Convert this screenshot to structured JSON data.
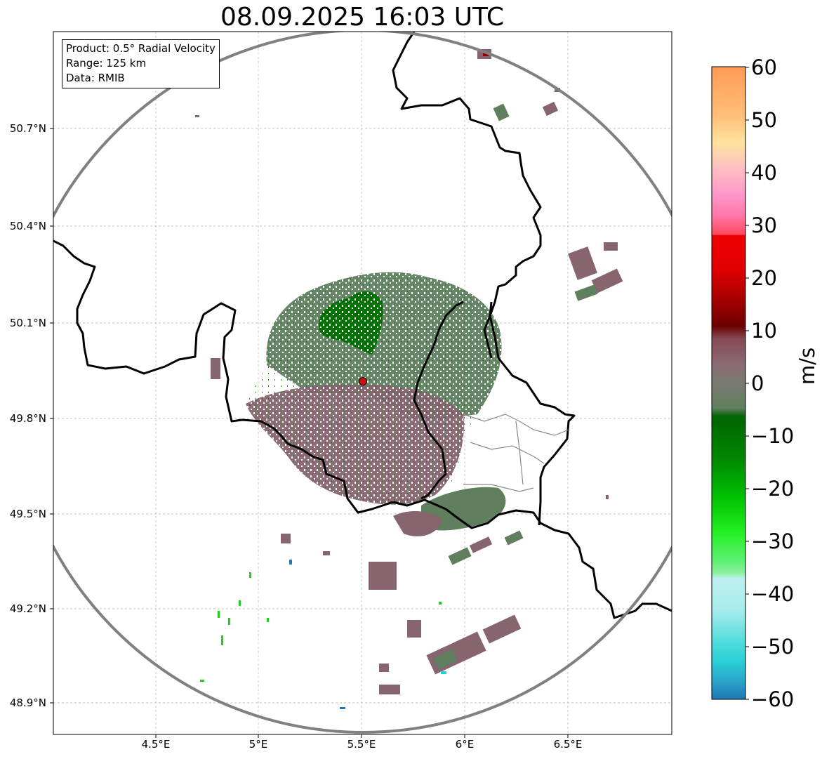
{
  "title": "08.09.2025 16:03 UTC",
  "info": {
    "product": "Product: 0.5° Radial Velocity",
    "range": "Range: 125 km",
    "data": "Data: RMIB"
  },
  "axes": {
    "lat_labels": [
      "50.7°N",
      "50.4°N",
      "50.1°N",
      "49.8°N",
      "49.5°N",
      "49.2°N",
      "48.9°N"
    ],
    "lon_labels": [
      "4.5°E",
      "5°E",
      "5.5°E",
      "6°E",
      "6.5°E"
    ]
  },
  "colorbar": {
    "label": "m/s",
    "ticks": [
      "60",
      "50",
      "40",
      "30",
      "20",
      "10",
      "0",
      "−10",
      "−20",
      "−30",
      "−40",
      "−50",
      "−60"
    ],
    "range": [
      -60,
      60
    ],
    "stops": [
      "#1f77b4",
      "#2aa6cc",
      "#2ad0d8",
      "#4fdcdc",
      "#7fe5e5",
      "#a6ecec",
      "#bfeff0",
      "#8ef0a0",
      "#5cf070",
      "#22f022",
      "#00d000",
      "#00a800",
      "#008000",
      "#006400",
      "#5f7f5f",
      "#7a7a72",
      "#8a6a74",
      "#864a55",
      "#6b0000",
      "#950000",
      "#c00000",
      "#f00000",
      "#ff4a5e",
      "#ff78a8",
      "#ff99cc",
      "#ffc0c0",
      "#ffe3a0",
      "#ffc07a",
      "#ff9a55"
    ]
  },
  "colors": {
    "border": "#000000",
    "range_ring": "#808080",
    "radar_site": "#cc1111",
    "approach": "#5f7f5f",
    "recede": "#86656f",
    "strong_inbound": "#007000"
  }
}
